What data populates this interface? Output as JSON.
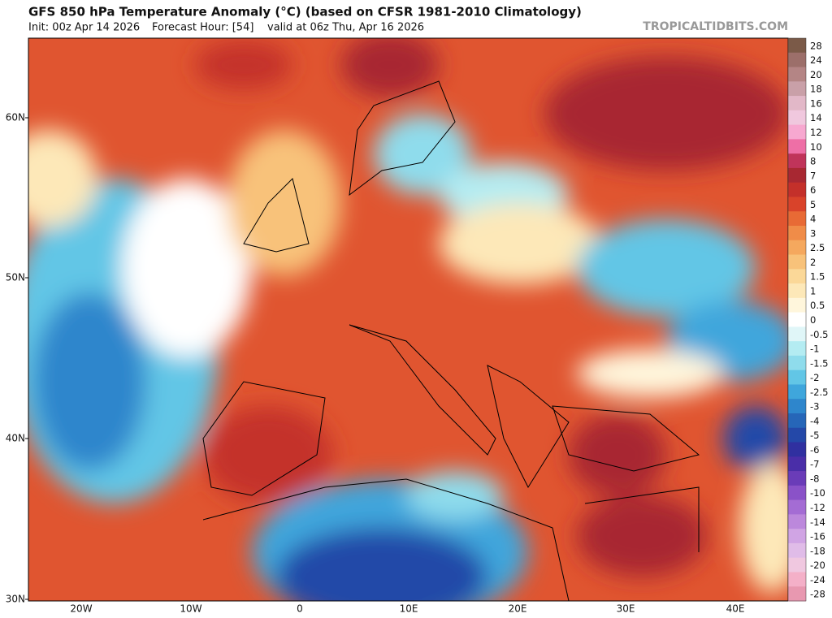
{
  "header": {
    "title": "GFS 850 hPa Temperature Anomaly (°C) (based on CFSR 1981-2010 Climatology)",
    "init": "Init: 00z Apr 14 2026",
    "forecast_hour": "Forecast Hour: [54]",
    "valid": "valid at 06z Thu, Apr 16 2026",
    "brand": "TROPICALTIDBITS.COM"
  },
  "map": {
    "lat_labels": [
      "60N",
      "50N",
      "40N",
      "30N"
    ],
    "lon_labels": [
      "20W",
      "10W",
      "0",
      "10E",
      "20E",
      "30E",
      "40E"
    ]
  },
  "legend": {
    "items": [
      {
        "label": "28",
        "color": "#7b5a48"
      },
      {
        "label": "24",
        "color": "#9c6f6a"
      },
      {
        "label": "20",
        "color": "#b48585"
      },
      {
        "label": "18",
        "color": "#c9a0a8"
      },
      {
        "label": "16",
        "color": "#e2b8c8"
      },
      {
        "label": "14",
        "color": "#f0c8de"
      },
      {
        "label": "12",
        "color": "#f7a8d0"
      },
      {
        "label": "10",
        "color": "#ee6fa6"
      },
      {
        "label": "8",
        "color": "#c0345a"
      },
      {
        "label": "7",
        "color": "#a82832"
      },
      {
        "label": "6",
        "color": "#c4302a"
      },
      {
        "label": "5",
        "color": "#d9432a"
      },
      {
        "label": "4",
        "color": "#e86a35"
      },
      {
        "label": "3",
        "color": "#f08c48"
      },
      {
        "label": "2.5",
        "color": "#f5a85e"
      },
      {
        "label": "2",
        "color": "#f8c27a"
      },
      {
        "label": "1.5",
        "color": "#fbd898"
      },
      {
        "label": "1",
        "color": "#fde8b8"
      },
      {
        "label": "0.5",
        "color": "#fff6dc"
      },
      {
        "label": "0",
        "color": "#ffffff"
      },
      {
        "label": "-0.5",
        "color": "#e0f6f8"
      },
      {
        "label": "-1",
        "color": "#b4ecf2"
      },
      {
        "label": "-1.5",
        "color": "#8fdcec"
      },
      {
        "label": "-2",
        "color": "#62c6e6"
      },
      {
        "label": "-2.5",
        "color": "#3fa6dc"
      },
      {
        "label": "-3",
        "color": "#2e86cc"
      },
      {
        "label": "-4",
        "color": "#2666b8"
      },
      {
        "label": "-5",
        "color": "#2448a8"
      },
      {
        "label": "-6",
        "color": "#3030a0"
      },
      {
        "label": "-7",
        "color": "#4a2ea8"
      },
      {
        "label": "-8",
        "color": "#6a3cb8"
      },
      {
        "label": "-10",
        "color": "#8a52c8"
      },
      {
        "label": "-12",
        "color": "#a46cd4"
      },
      {
        "label": "-14",
        "color": "#bc88dc"
      },
      {
        "label": "-16",
        "color": "#d0a4e4"
      },
      {
        "label": "-18",
        "color": "#e0bce8"
      },
      {
        "label": "-20",
        "color": "#f0c8e0"
      },
      {
        "label": "-24",
        "color": "#f4b0c8"
      },
      {
        "label": "-28",
        "color": "#e898b0"
      }
    ]
  }
}
